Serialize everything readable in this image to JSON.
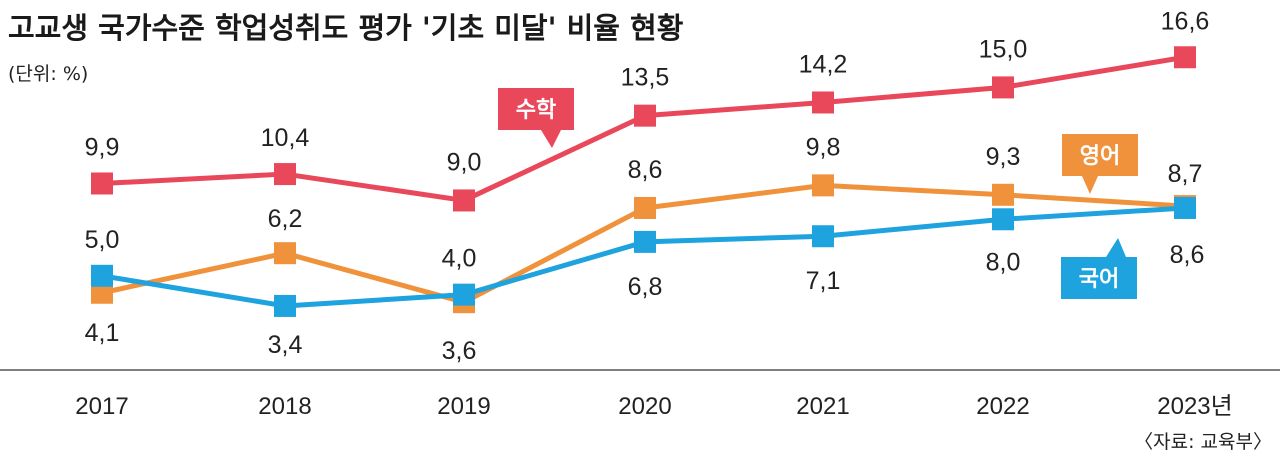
{
  "chart_data": {
    "type": "line",
    "title": "고교생 국가수준 학업성취도 평가 '기초 미달' 비율 현황",
    "unit_label": "(단위: %)",
    "source": "〈자료: 교육부〉",
    "categories": [
      "2017",
      "2018",
      "2019",
      "2020",
      "2021",
      "2022",
      "2023년"
    ],
    "ylim": [
      0,
      20
    ],
    "grid": false,
    "series": [
      {
        "name": "수학",
        "color": "#e8485a",
        "values": [
          9.9,
          10.4,
          9.0,
          13.5,
          14.2,
          15.0,
          16.6
        ],
        "value_labels": [
          "9,9",
          "10,4",
          "9,0",
          "13,5",
          "14,2",
          "15,0",
          "16,6"
        ]
      },
      {
        "name": "영어",
        "color": "#f0923b",
        "values": [
          4.1,
          6.2,
          3.6,
          8.6,
          9.8,
          9.3,
          8.7
        ],
        "value_labels": [
          "4,1",
          "6,2",
          "3,6",
          "8,6",
          "9,8",
          "9,3",
          "8,7"
        ]
      },
      {
        "name": "국어",
        "color": "#1fa3df",
        "values": [
          5.0,
          3.4,
          4.0,
          6.8,
          7.1,
          8.0,
          8.6
        ],
        "value_labels": [
          "5,0",
          "3,4",
          "4,0",
          "6,8",
          "7,1",
          "8,0",
          "8,6"
        ]
      }
    ]
  }
}
